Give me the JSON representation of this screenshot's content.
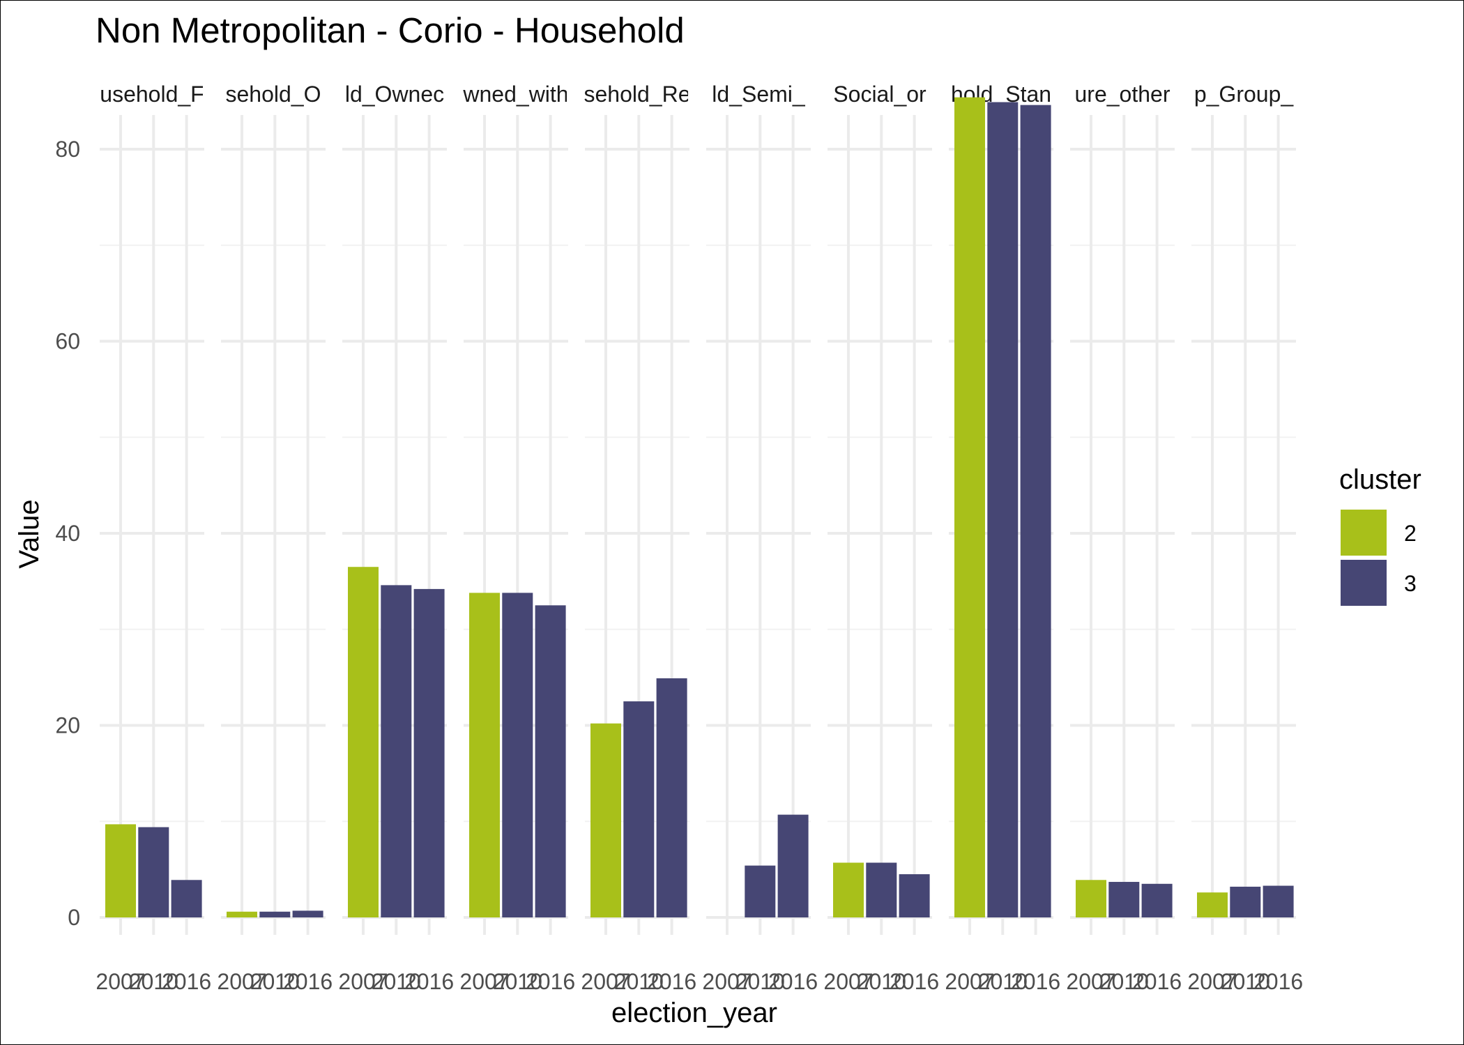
{
  "chart_data": {
    "type": "bar",
    "title": "Non Metropolitan - Corio - Household",
    "xlabel": "election_year",
    "ylabel": "Value",
    "ylim": [
      0,
      89.5
    ],
    "y_ticks": [
      0,
      20,
      40,
      60,
      80
    ],
    "grid": true,
    "legend": {
      "title": "cluster",
      "position": "right",
      "entries": [
        {
          "label": "2",
          "color": "#a8c01a"
        },
        {
          "label": "3",
          "color": "#464674"
        }
      ]
    },
    "facets": [
      {
        "strip": "usehold_F",
        "years": [
          "2007",
          "2010",
          "2016"
        ],
        "values": [
          9.7,
          9.4,
          3.9
        ],
        "clusters": [
          "2",
          "3",
          "3"
        ]
      },
      {
        "strip": "sehold_O",
        "years": [
          "2007",
          "2010",
          "2016"
        ],
        "values": [
          0.6,
          0.6,
          0.7
        ],
        "clusters": [
          "2",
          "3",
          "3"
        ]
      },
      {
        "strip": "ld_Ownec",
        "years": [
          "2007",
          "2010",
          "2016"
        ],
        "values": [
          36.5,
          34.6,
          34.2
        ],
        "clusters": [
          "2",
          "3",
          "3"
        ]
      },
      {
        "strip": "wned_with",
        "years": [
          "2007",
          "2010",
          "2016"
        ],
        "values": [
          33.8,
          33.8,
          32.5
        ],
        "clusters": [
          "2",
          "3",
          "3"
        ]
      },
      {
        "strip": "sehold_Re",
        "years": [
          "2007",
          "2010",
          "2016"
        ],
        "values": [
          20.2,
          22.5,
          24.9
        ],
        "clusters": [
          "2",
          "3",
          "3"
        ]
      },
      {
        "strip": "ld_Semi_",
        "years": [
          "2007",
          "2010",
          "2016"
        ],
        "values": [
          null,
          5.4,
          10.7
        ],
        "clusters": [
          "2",
          "3",
          "3"
        ]
      },
      {
        "strip": "Social_or",
        "years": [
          "2007",
          "2010",
          "2016"
        ],
        "values": [
          5.7,
          5.7,
          4.5
        ],
        "clusters": [
          "2",
          "3",
          "3"
        ]
      },
      {
        "strip": "hold_Stan",
        "years": [
          "2007",
          "2010",
          "2016"
        ],
        "values": [
          85.4,
          84.9,
          84.6
        ],
        "clusters": [
          "2",
          "3",
          "3"
        ]
      },
      {
        "strip": "ure_other",
        "years": [
          "2007",
          "2010",
          "2016"
        ],
        "values": [
          3.9,
          3.7,
          3.5
        ],
        "clusters": [
          "2",
          "3",
          "3"
        ]
      },
      {
        "strip": "p_Group_",
        "years": [
          "2007",
          "2010",
          "2016"
        ],
        "values": [
          2.6,
          3.2,
          3.3
        ],
        "clusters": [
          "2",
          "3",
          "3"
        ]
      }
    ]
  }
}
